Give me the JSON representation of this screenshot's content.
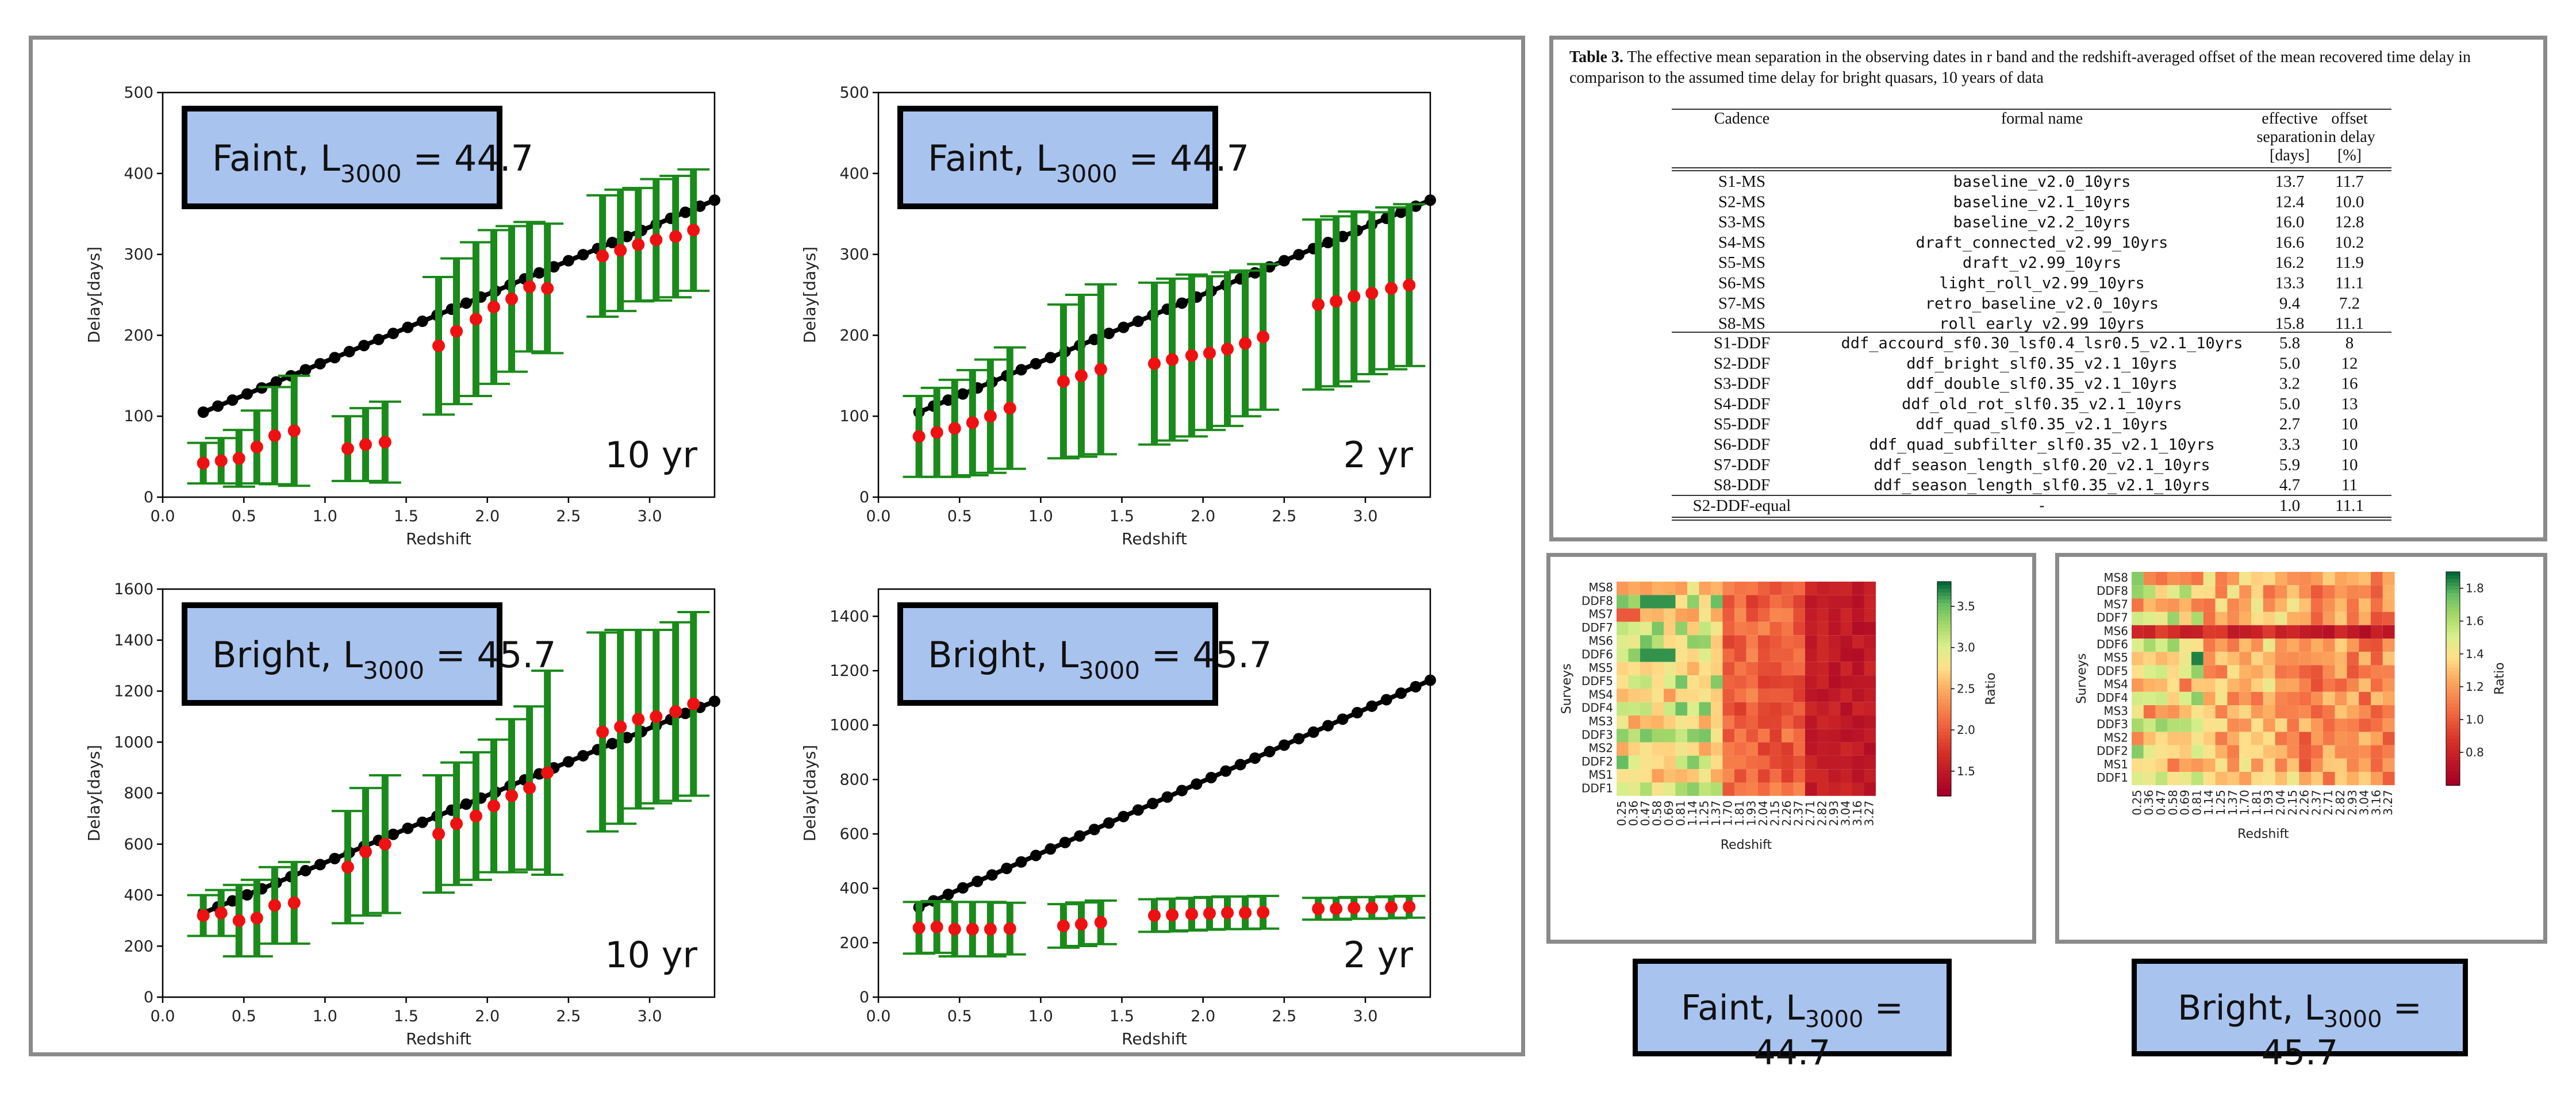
{
  "chart_data": [
    {
      "type": "scatter",
      "label": "Faint, L3000 = 44.7",
      "label_main": "Faint, L",
      "label_sub": "3000",
      "label_value": " = 44.7",
      "span": "10 yr",
      "xlabel": "Redshift",
      "ylabel": "Delay[days]",
      "xlim": [
        0.0,
        3.4
      ],
      "ylim": [
        0,
        500
      ],
      "xticks": [
        "0.0",
        "0.5",
        "1.0",
        "1.5",
        "2.0",
        "2.5",
        "3.0"
      ],
      "yticks": [
        "0",
        "100",
        "200",
        "300",
        "400",
        "500"
      ],
      "true_delay": {
        "z_start": 0.25,
        "z_end": 3.4,
        "d_start": 105,
        "d_end": 367
      },
      "series": [
        {
          "name": "recovered",
          "z": [
            0.25,
            0.36,
            0.47,
            0.58,
            0.69,
            0.81,
            1.14,
            1.25,
            1.37,
            1.7,
            1.81,
            1.93,
            2.04,
            2.15,
            2.26,
            2.37,
            2.71,
            2.82,
            2.93,
            3.04,
            3.16,
            3.27
          ],
          "delay": [
            42,
            45,
            48,
            62,
            76,
            82,
            60,
            65,
            68,
            187,
            205,
            220,
            235,
            245,
            260,
            258,
            298,
            305,
            312,
            318,
            322,
            330
          ],
          "err": [
            25,
            28,
            35,
            45,
            60,
            68,
            40,
            45,
            50,
            85,
            90,
            95,
            95,
            90,
            80,
            80,
            75,
            75,
            70,
            75,
            75,
            75
          ]
        }
      ]
    },
    {
      "type": "scatter",
      "label": "Faint, L3000 = 44.7",
      "label_main": "Faint, L",
      "label_sub": "3000",
      "label_value": " = 44.7",
      "span": "2 yr",
      "xlabel": "Redshift",
      "ylabel": "Delay[days]",
      "xlim": [
        0.0,
        3.4
      ],
      "ylim": [
        0,
        500
      ],
      "xticks": [
        "0.0",
        "0.5",
        "1.0",
        "1.5",
        "2.0",
        "2.5",
        "3.0"
      ],
      "yticks": [
        "0",
        "100",
        "200",
        "300",
        "400",
        "500"
      ],
      "true_delay": {
        "z_start": 0.25,
        "z_end": 3.4,
        "d_start": 105,
        "d_end": 367
      },
      "series": [
        {
          "name": "recovered",
          "z": [
            0.25,
            0.36,
            0.47,
            0.58,
            0.69,
            0.81,
            1.14,
            1.25,
            1.37,
            1.7,
            1.81,
            1.93,
            2.04,
            2.15,
            2.26,
            2.37,
            2.71,
            2.82,
            2.93,
            3.04,
            3.16,
            3.27
          ],
          "delay": [
            75,
            80,
            85,
            92,
            100,
            110,
            143,
            150,
            158,
            165,
            170,
            175,
            178,
            183,
            190,
            198,
            238,
            242,
            248,
            252,
            258,
            262
          ],
          "err": [
            50,
            55,
            60,
            65,
            70,
            75,
            95,
            100,
            105,
            100,
            100,
            100,
            95,
            95,
            90,
            90,
            105,
            105,
            105,
            100,
            100,
            100
          ]
        }
      ]
    },
    {
      "type": "scatter",
      "label": "Bright, L3000 = 45.7",
      "label_main": "Bright, L",
      "label_sub": "3000",
      "label_value": " = 45.7",
      "span": "10 yr",
      "xlabel": "Redshift",
      "ylabel": "Delay[days]",
      "xlim": [
        0.0,
        3.4
      ],
      "ylim": [
        0,
        1600
      ],
      "xticks": [
        "0.0",
        "0.5",
        "1.0",
        "1.5",
        "2.0",
        "2.5",
        "3.0"
      ],
      "yticks": [
        "0",
        "200",
        "400",
        "600",
        "800",
        "1000",
        "1200",
        "1400",
        "1600"
      ],
      "true_delay": {
        "z_start": 0.25,
        "z_end": 3.4,
        "d_start": 330,
        "d_end": 1160
      },
      "series": [
        {
          "name": "recovered",
          "z": [
            0.25,
            0.36,
            0.47,
            0.58,
            0.69,
            0.81,
            1.14,
            1.25,
            1.37,
            1.7,
            1.81,
            1.93,
            2.04,
            2.15,
            2.26,
            2.37,
            2.71,
            2.82,
            2.93,
            3.04,
            3.16,
            3.27
          ],
          "delay": [
            320,
            330,
            300,
            310,
            360,
            370,
            510,
            570,
            600,
            640,
            680,
            710,
            750,
            790,
            820,
            880,
            1040,
            1060,
            1090,
            1100,
            1120,
            1150
          ],
          "err": [
            80,
            90,
            140,
            150,
            150,
            160,
            220,
            250,
            270,
            230,
            240,
            250,
            260,
            300,
            320,
            400,
            390,
            380,
            350,
            340,
            350,
            360
          ]
        }
      ]
    },
    {
      "type": "scatter",
      "label": "Bright, L3000 = 45.7",
      "label_main": "Bright, L",
      "label_sub": "3000",
      "label_value": " = 45.7",
      "span": "2 yr",
      "xlabel": "Redshift",
      "ylabel": "Delay[days]",
      "xlim": [
        0.0,
        3.4
      ],
      "ylim": [
        0,
        1500
      ],
      "xticks": [
        "0.0",
        "0.5",
        "1.0",
        "1.5",
        "2.0",
        "2.5",
        "3.0"
      ],
      "yticks": [
        "0",
        "200",
        "400",
        "600",
        "800",
        "1000",
        "1200",
        "1400"
      ],
      "true_delay": {
        "z_start": 0.25,
        "z_end": 3.4,
        "d_start": 330,
        "d_end": 1165
      },
      "series": [
        {
          "name": "recovered",
          "z": [
            0.25,
            0.36,
            0.47,
            0.58,
            0.69,
            0.81,
            1.14,
            1.25,
            1.37,
            1.7,
            1.81,
            1.93,
            2.04,
            2.15,
            2.26,
            2.37,
            2.71,
            2.82,
            2.93,
            3.04,
            3.16,
            3.27
          ],
          "delay": [
            255,
            258,
            250,
            250,
            250,
            252,
            262,
            268,
            275,
            300,
            302,
            305,
            308,
            310,
            310,
            312,
            325,
            325,
            328,
            328,
            330,
            332
          ],
          "err": [
            95,
            95,
            100,
            100,
            100,
            95,
            80,
            80,
            80,
            60,
            60,
            60,
            60,
            60,
            60,
            60,
            40,
            40,
            40,
            40,
            40,
            40
          ]
        }
      ]
    }
  ],
  "table": {
    "caption_bold": "Table 3.",
    "caption_text": "The effective mean separation in the observing dates in r band and the redshift-averaged offset of the mean recovered time delay in comparison to the assumed time delay for bright quasars, 10 years of data",
    "headers": {
      "cadence": "Cadence",
      "formal": "formal name",
      "sep": [
        "effective",
        "separation",
        "[days]"
      ],
      "offset": [
        "offset",
        "in delay",
        "[%]"
      ]
    },
    "rows_ms": [
      [
        "S1-MS",
        "baseline_v2.0_10yrs",
        "13.7",
        "11.7"
      ],
      [
        "S2-MS",
        "baseline_v2.1_10yrs",
        "12.4",
        "10.0"
      ],
      [
        "S3-MS",
        "baseline_v2.2_10yrs",
        "16.0",
        "12.8"
      ],
      [
        "S4-MS",
        "draft_connected_v2.99_10yrs",
        "16.6",
        "10.2"
      ],
      [
        "S5-MS",
        "draft_v2.99_10yrs",
        "16.2",
        "11.9"
      ],
      [
        "S6-MS",
        "light_roll_v2.99_10yrs",
        "13.3",
        "11.1"
      ],
      [
        "S7-MS",
        "retro_baseline_v2.0_10yrs",
        "9.4",
        "7.2"
      ],
      [
        "S8-MS",
        "roll_early_v2.99_10yrs",
        "15.8",
        "11.1"
      ]
    ],
    "rows_ddf": [
      [
        "S1-DDF",
        "ddf_accourd_sf0.30_lsf0.4_lsr0.5_v2.1_10yrs",
        "5.8",
        "8"
      ],
      [
        "S2-DDF",
        "ddf_bright_slf0.35_v2.1_10yrs",
        "5.0",
        "12"
      ],
      [
        "S3-DDF",
        "ddf_double_slf0.35_v2.1_10yrs",
        "3.2",
        "16"
      ],
      [
        "S4-DDF",
        "ddf_old_rot_slf0.35_v2.1_10yrs",
        "5.0",
        "13"
      ],
      [
        "S5-DDF",
        "ddf_quad_slf0.35_v2.1_10yrs",
        "2.7",
        "10"
      ],
      [
        "S6-DDF",
        "ddf_quad_subfilter_slf0.35_v2.1_10yrs",
        "3.3",
        "10"
      ],
      [
        "S7-DDF",
        "ddf_season_length_slf0.20_v2.1_10yrs",
        "5.9",
        "10"
      ],
      [
        "S8-DDF",
        "ddf_season_length_slf0.35_v2.1_10yrs",
        "4.7",
        "11"
      ]
    ],
    "rows_last": [
      [
        "S2-DDF-equal",
        "-",
        "1.0",
        "11.1"
      ]
    ]
  },
  "heatmaps": [
    {
      "type": "heatmap",
      "label_main": "Faint, L",
      "label_sub": "3000",
      "label_value": " = 44.7",
      "ylabel": "Surveys",
      "xlabel": "Redshift",
      "colorbar_label": "Ratio",
      "colorbar_ticks": [
        "3.5",
        "3.0",
        "2.5",
        "2.0",
        "1.5"
      ],
      "colorbar_range": [
        1.2,
        3.8
      ],
      "rows": [
        "MS8",
        "DDF8",
        "MS7",
        "DDF7",
        "MS6",
        "DDF6",
        "MS5",
        "DDF5",
        "MS4",
        "DDF4",
        "MS3",
        "DDF3",
        "MS2",
        "DDF2",
        "MS1",
        "DDF1"
      ],
      "cols": [
        "0.25",
        "0.36",
        "0.47",
        "0.58",
        "0.69",
        "0.81",
        "1.14",
        "1.25",
        "1.37",
        "1.70",
        "1.81",
        "1.93",
        "2.04",
        "2.15",
        "2.26",
        "2.37",
        "2.71",
        "2.82",
        "2.93",
        "3.04",
        "3.16",
        "3.27"
      ]
    },
    {
      "type": "heatmap",
      "label_main": "Bright, L",
      "label_sub": "3000",
      "label_value": " = 45.7",
      "ylabel": "Surveys",
      "xlabel": "Redshift",
      "colorbar_label": "Ratio",
      "colorbar_ticks": [
        "1.8",
        "1.6",
        "1.4",
        "1.2",
        "1.0",
        "0.8"
      ],
      "colorbar_range": [
        0.6,
        1.9
      ],
      "rows": [
        "MS8",
        "DDF8",
        "MS7",
        "DDF7",
        "MS6",
        "DDF6",
        "MS5",
        "DDF5",
        "MS4",
        "DDF4",
        "MS3",
        "DDF3",
        "MS2",
        "DDF2",
        "MS1",
        "DDF1"
      ],
      "cols": [
        "0.25",
        "0.36",
        "0.47",
        "0.58",
        "0.69",
        "0.81",
        "1.14",
        "1.25",
        "1.37",
        "1.70",
        "1.81",
        "1.93",
        "2.04",
        "2.15",
        "2.26",
        "2.37",
        "2.71",
        "2.82",
        "2.93",
        "3.04",
        "3.16",
        "3.27"
      ]
    }
  ],
  "colors": {
    "box_fill": "#a9c3ef",
    "error_bar": "#1a8a1a",
    "recovered": "#ee1111",
    "true_delay": "#000000",
    "panel_border": "#8a8a8a"
  }
}
